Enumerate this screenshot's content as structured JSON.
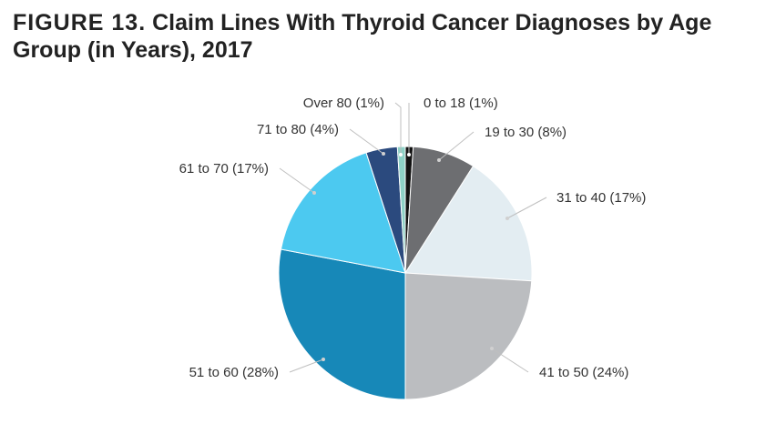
{
  "figure": {
    "label": "FIGURE 13.",
    "title": "Claim Lines With Thyroid Cancer Diagnoses by Age Group (in Years), 2017"
  },
  "chart_data": {
    "type": "pie",
    "title": "Claim Lines With Thyroid Cancer Diagnoses by Age Group (in Years), 2017",
    "categories": [
      "0 to 18",
      "19 to 30",
      "31 to 40",
      "41 to 50",
      "51 to 60",
      "61 to 70",
      "71 to 80",
      "Over 80"
    ],
    "values": [
      1,
      8,
      17,
      24,
      28,
      17,
      4,
      1
    ],
    "unit": "%",
    "labels": [
      "0 to 18 (1%)",
      "19 to 30 (8%)",
      "31 to 40 (17%)",
      "41 to 50 (24%)",
      "51 to 60 (28%)",
      "61 to 70 (17%)",
      "71 to 80 (4%)",
      "Over 80 (1%)"
    ],
    "colors": [
      "#111111",
      "#6d6e71",
      "#e3edf2",
      "#bbbdc0",
      "#1788b8",
      "#4cc9f0",
      "#2b4a7e",
      "#8ed1c6"
    ],
    "start": "12 o'clock",
    "direction": "clockwise",
    "legend": "none (leader-line labels)"
  }
}
